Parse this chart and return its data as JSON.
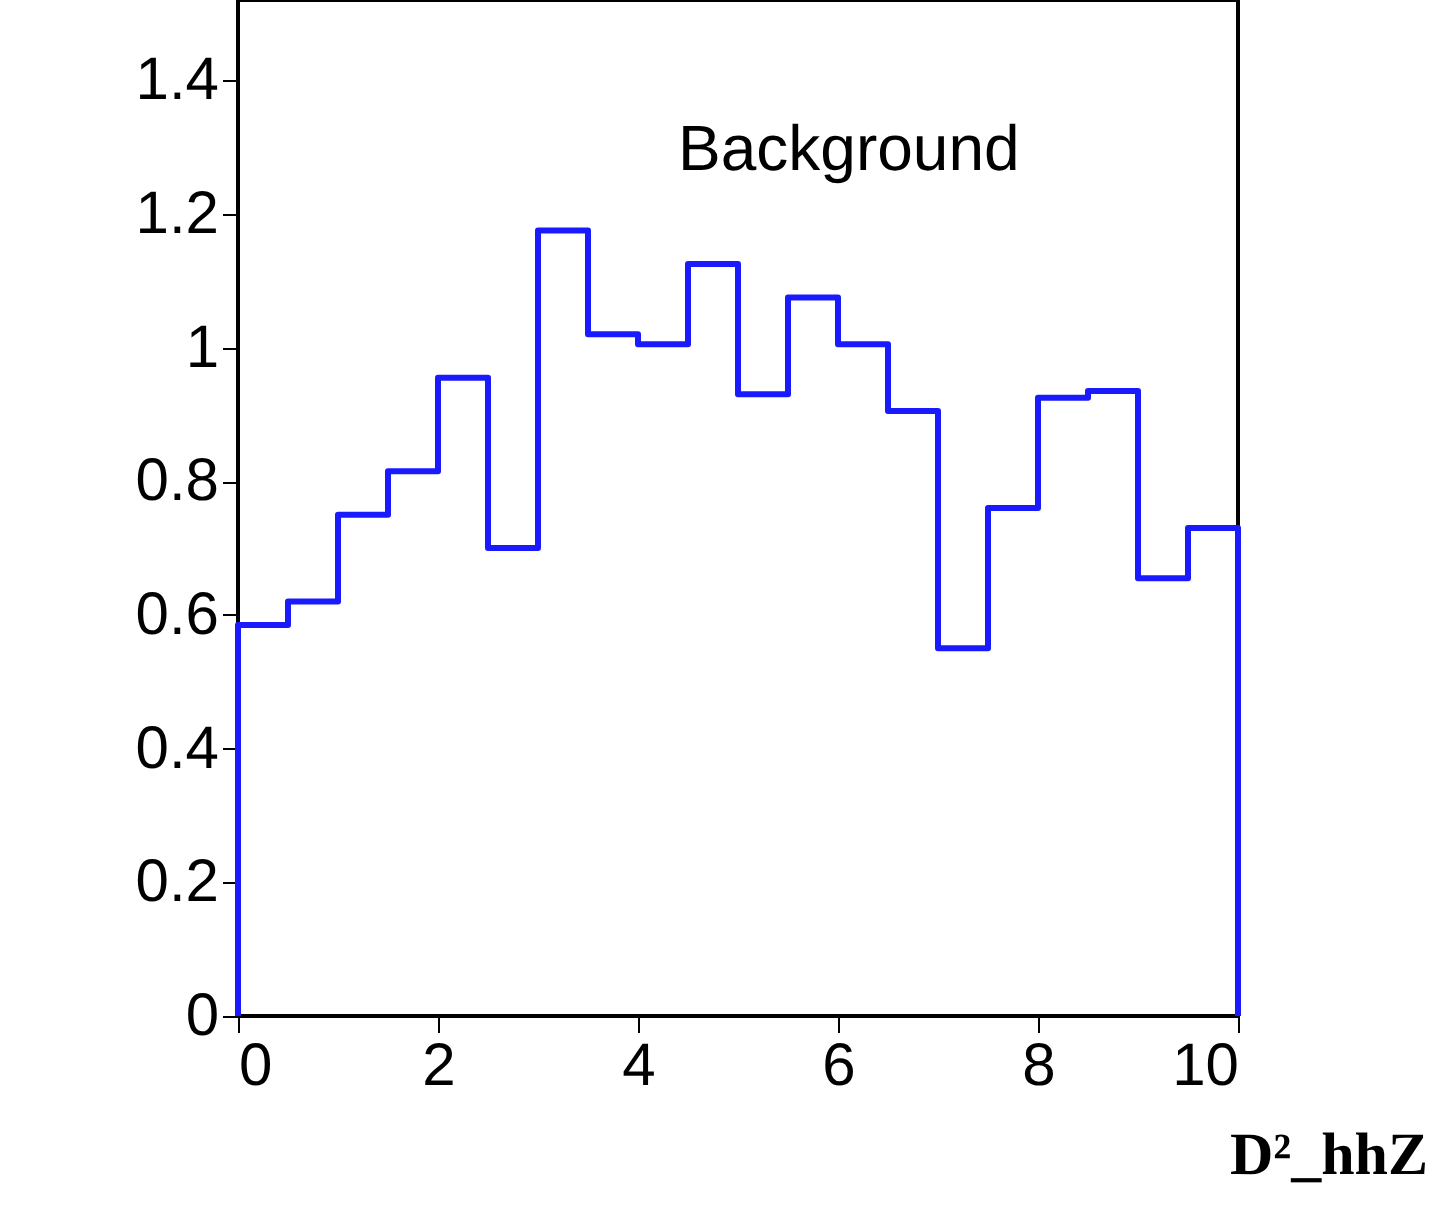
{
  "chart_data": {
    "type": "histogram",
    "bins": [
      0,
      0.5,
      1,
      1.5,
      2,
      2.5,
      3,
      3.5,
      4,
      4.5,
      5,
      5.5,
      6,
      6.5,
      7,
      7.5,
      8,
      8.5,
      9,
      9.5,
      10
    ],
    "values": [
      0.585,
      0.62,
      0.75,
      0.815,
      0.955,
      0.7,
      1.175,
      1.02,
      1.005,
      1.125,
      0.93,
      1.075,
      1.005,
      0.905,
      0.55,
      0.76,
      0.925,
      0.935,
      0.655,
      0.73
    ],
    "color": "#1a1aff",
    "xlabel": "D²_hhZ",
    "annotations": [
      "Background"
    ],
    "xlim": [
      0,
      10
    ],
    "xticks": [
      0,
      2,
      4,
      6,
      8,
      10
    ],
    "ylim": [
      0,
      1.52
    ],
    "yticks": [
      0,
      0.2,
      0.4,
      0.6,
      0.8,
      1,
      1.2,
      1.4
    ],
    "grid": false
  }
}
